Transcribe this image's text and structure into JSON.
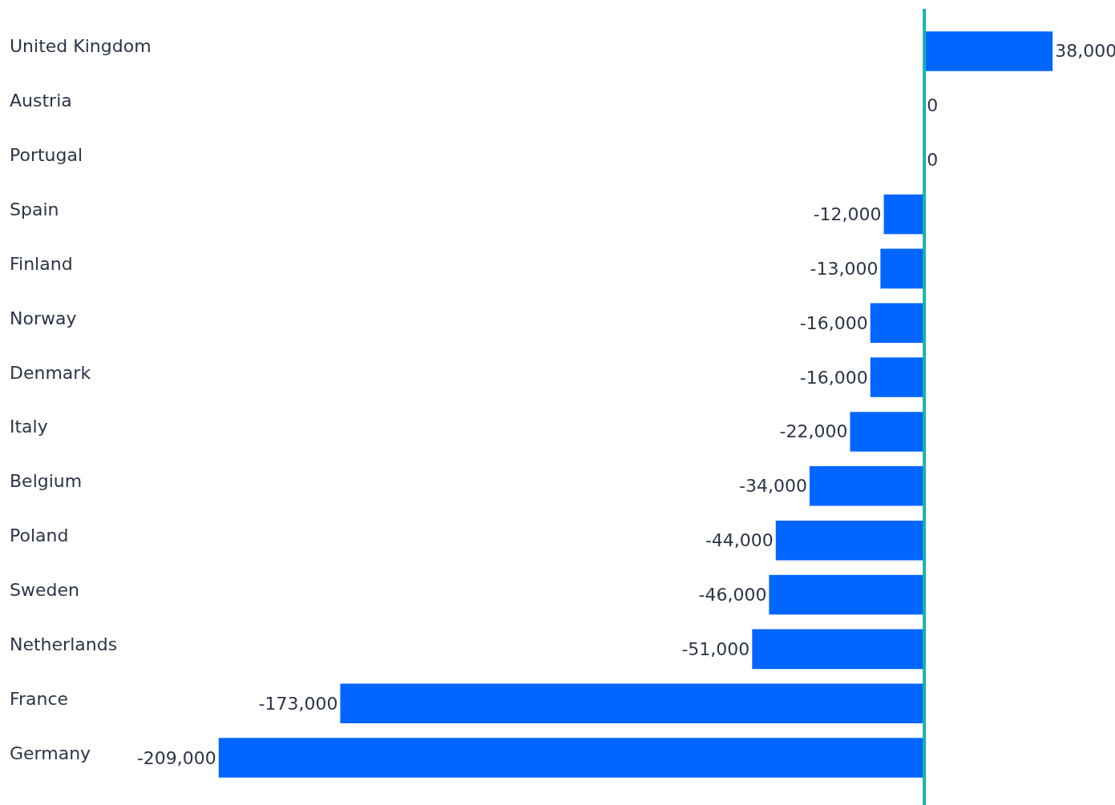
{
  "chart_data": {
    "type": "bar",
    "orientation": "horizontal",
    "categories": [
      "United Kingdom",
      "Austria",
      "Portugal",
      "Spain",
      "Finland",
      "Norway",
      "Denmark",
      "Italy",
      "Belgium",
      "Poland",
      "Sweden",
      "Netherlands",
      "France",
      "Germany"
    ],
    "values": [
      38000,
      0,
      0,
      -12000,
      -13000,
      -16000,
      -16000,
      -22000,
      -34000,
      -44000,
      -46000,
      -51000,
      -173000,
      -209000
    ],
    "value_labels": [
      "38,000",
      "0",
      "0",
      "-12,000",
      "-13,000",
      "-16,000",
      "-16,000",
      "-22,000",
      "-34,000",
      "-44,000",
      "-46,000",
      "-51,000",
      "-173,000",
      "-209,000"
    ],
    "color": "#0066ff",
    "tick_labels": "y",
    "grid": false,
    "legend": false,
    "ref_lines": [
      {
        "axis": "x",
        "value": 0,
        "color": "#17b3b0"
      }
    ]
  }
}
